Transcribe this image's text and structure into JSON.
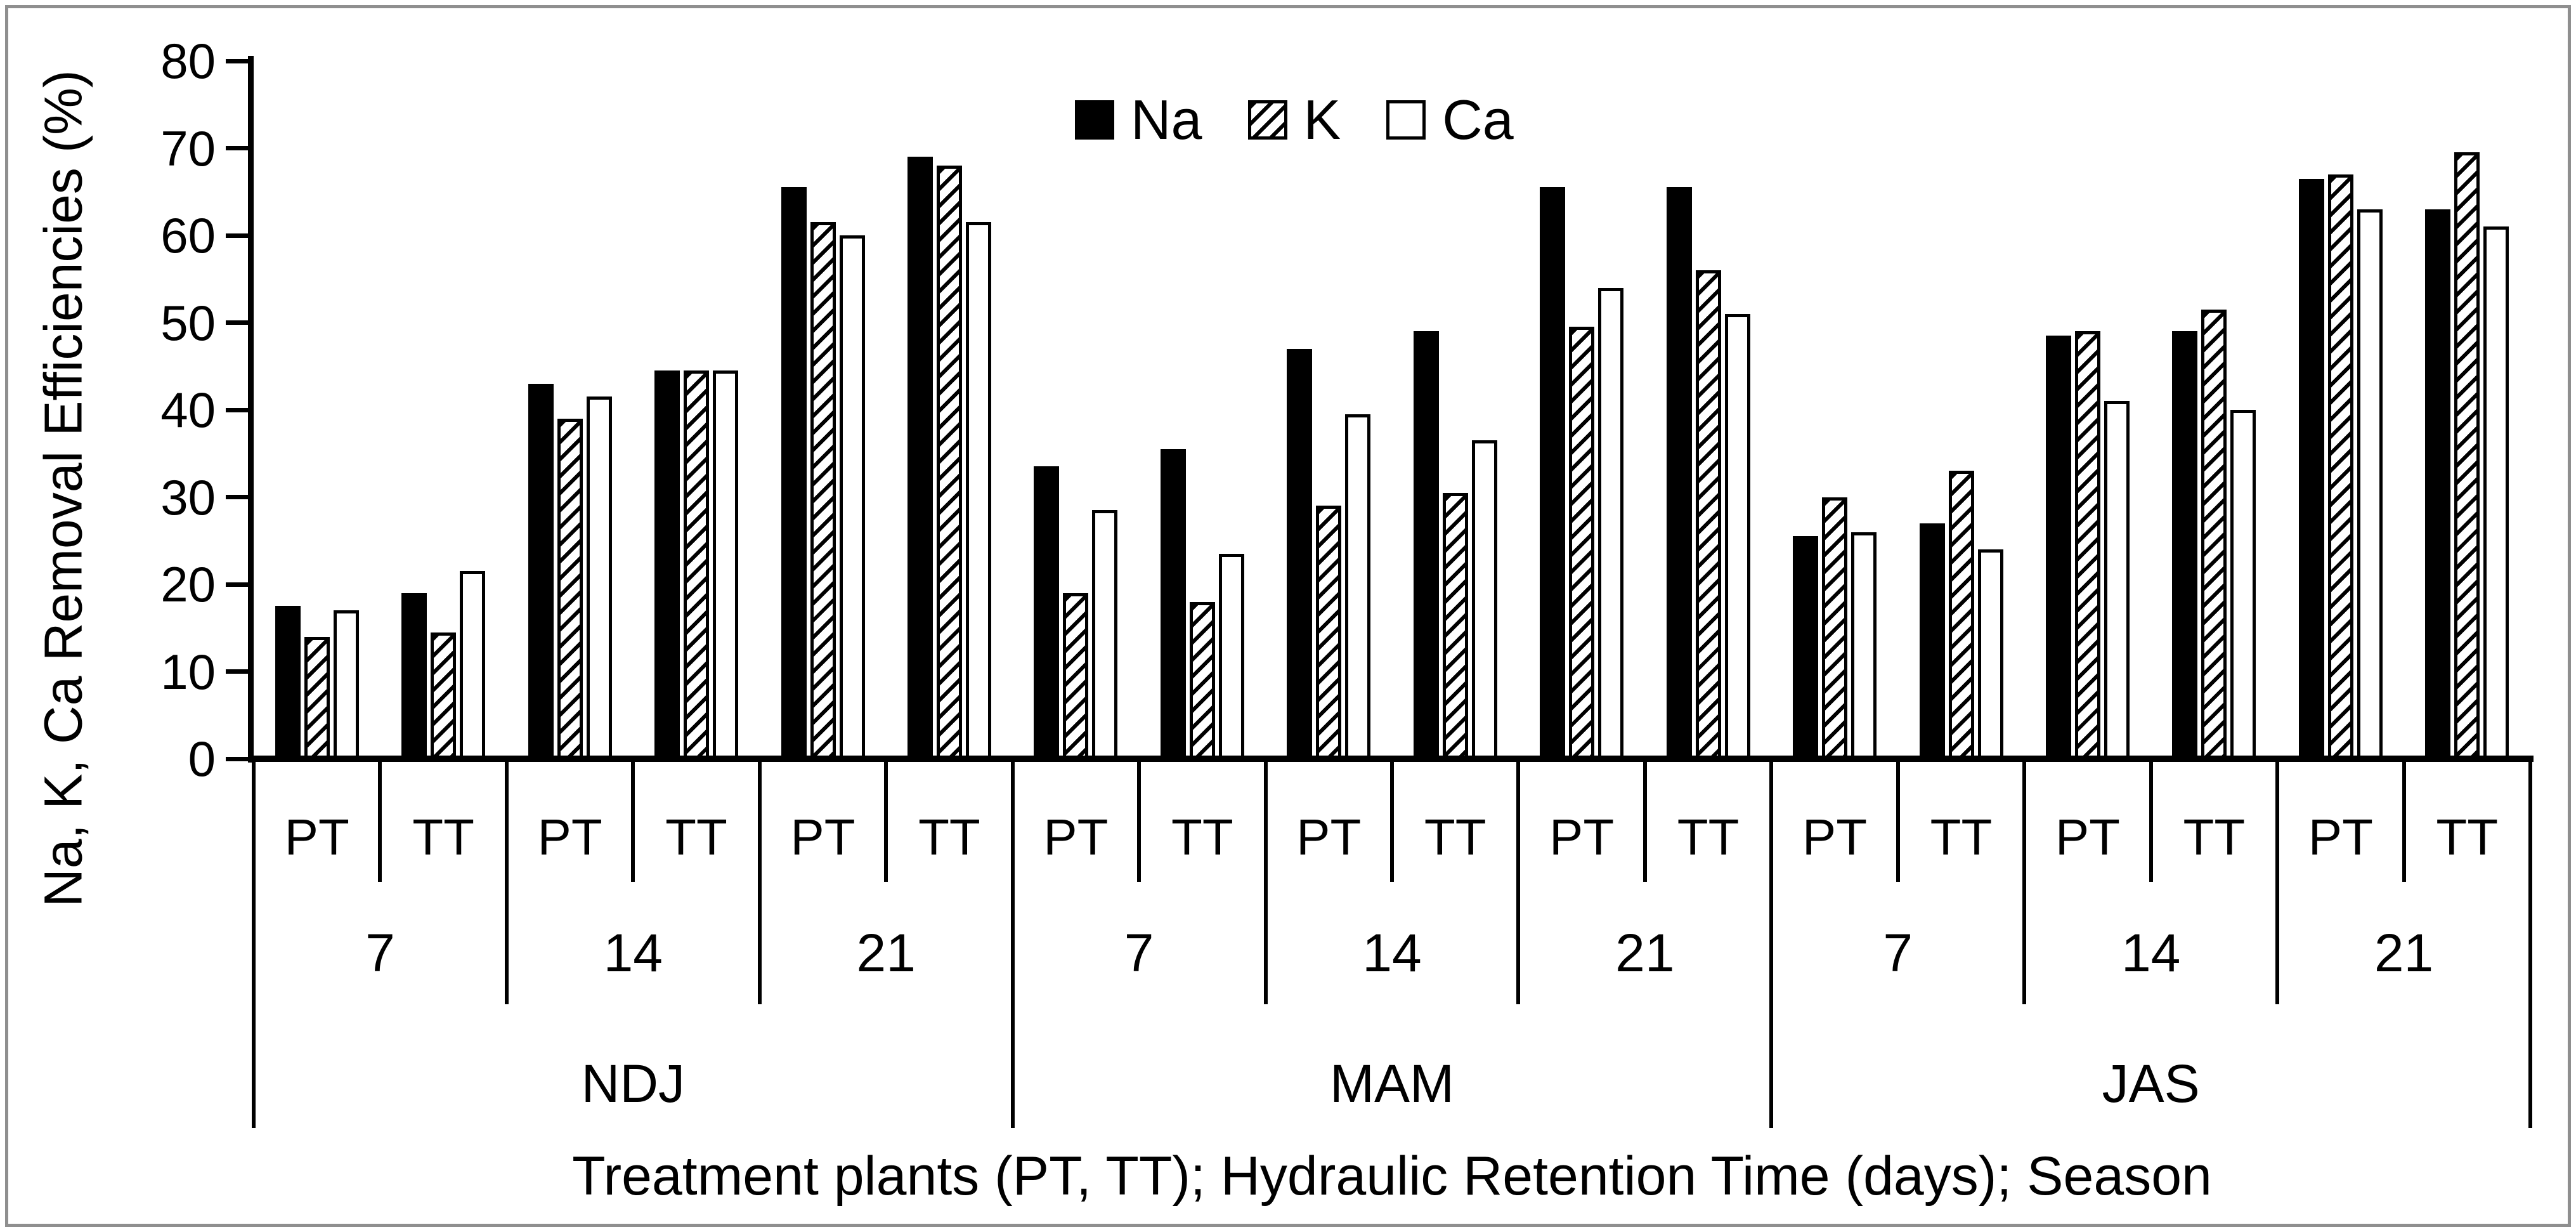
{
  "chart_data": {
    "type": "bar",
    "title": "",
    "ylabel": "Na, K,  Ca Removal Efficiencies (%)",
    "xlabel": "Treatment plants (PT, TT); Hydraulic Retention Time (days); Season",
    "ylim": [
      0,
      80
    ],
    "yticks": [
      0,
      10,
      20,
      30,
      40,
      50,
      60,
      70,
      80
    ],
    "grid": false,
    "legend_position": "top-center",
    "legend": [
      {
        "label": "Na",
        "pattern": "solid"
      },
      {
        "label": "K",
        "pattern": "hatch"
      },
      {
        "label": "Ca",
        "pattern": "open"
      }
    ],
    "series_order": [
      "Na",
      "K",
      "Ca"
    ],
    "seasons": [
      {
        "label": "NDJ",
        "hrts": [
          {
            "label": "7",
            "plants": [
              {
                "label": "PT",
                "values": [
                  17.5,
                  14,
                  17
                ]
              },
              {
                "label": "TT",
                "values": [
                  19,
                  14.5,
                  21.5
                ]
              }
            ]
          },
          {
            "label": "14",
            "plants": [
              {
                "label": "PT",
                "values": [
                  43,
                  39,
                  41.5
                ]
              },
              {
                "label": "TT",
                "values": [
                  44.5,
                  44.5,
                  44.5
                ]
              }
            ]
          },
          {
            "label": "21",
            "plants": [
              {
                "label": "PT",
                "values": [
                  65.5,
                  61.5,
                  60
                ]
              },
              {
                "label": "TT",
                "values": [
                  69,
                  68,
                  61.5
                ]
              }
            ]
          }
        ]
      },
      {
        "label": "MAM",
        "hrts": [
          {
            "label": "7",
            "plants": [
              {
                "label": "PT",
                "values": [
                  33.5,
                  19,
                  28.5
                ]
              },
              {
                "label": "TT",
                "values": [
                  35.5,
                  18,
                  23.5
                ]
              }
            ]
          },
          {
            "label": "14",
            "plants": [
              {
                "label": "PT",
                "values": [
                  47,
                  29,
                  39.5
                ]
              },
              {
                "label": "TT",
                "values": [
                  49,
                  30.5,
                  36.5
                ]
              }
            ]
          },
          {
            "label": "21",
            "plants": [
              {
                "label": "PT",
                "values": [
                  65.5,
                  49.5,
                  54
                ]
              },
              {
                "label": "TT",
                "values": [
                  65.5,
                  56,
                  51
                ]
              }
            ]
          }
        ]
      },
      {
        "label": "JAS",
        "hrts": [
          {
            "label": "7",
            "plants": [
              {
                "label": "PT",
                "values": [
                  25.5,
                  30,
                  26
                ]
              },
              {
                "label": "TT",
                "values": [
                  27,
                  33,
                  24
                ]
              }
            ]
          },
          {
            "label": "14",
            "plants": [
              {
                "label": "PT",
                "values": [
                  48.5,
                  49,
                  41
                ]
              },
              {
                "label": "TT",
                "values": [
                  49,
                  51.5,
                  40
                ]
              }
            ]
          },
          {
            "label": "21",
            "plants": [
              {
                "label": "PT",
                "values": [
                  66.5,
                  67,
                  63
                ]
              },
              {
                "label": "TT",
                "values": [
                  63,
                  69.5,
                  61
                ]
              }
            ]
          }
        ]
      }
    ],
    "colors": {
      "bar_fill": "#000000",
      "bar_outline": "#000000",
      "background": "#ffffff",
      "frame_border": "#8f8f8f"
    }
  }
}
